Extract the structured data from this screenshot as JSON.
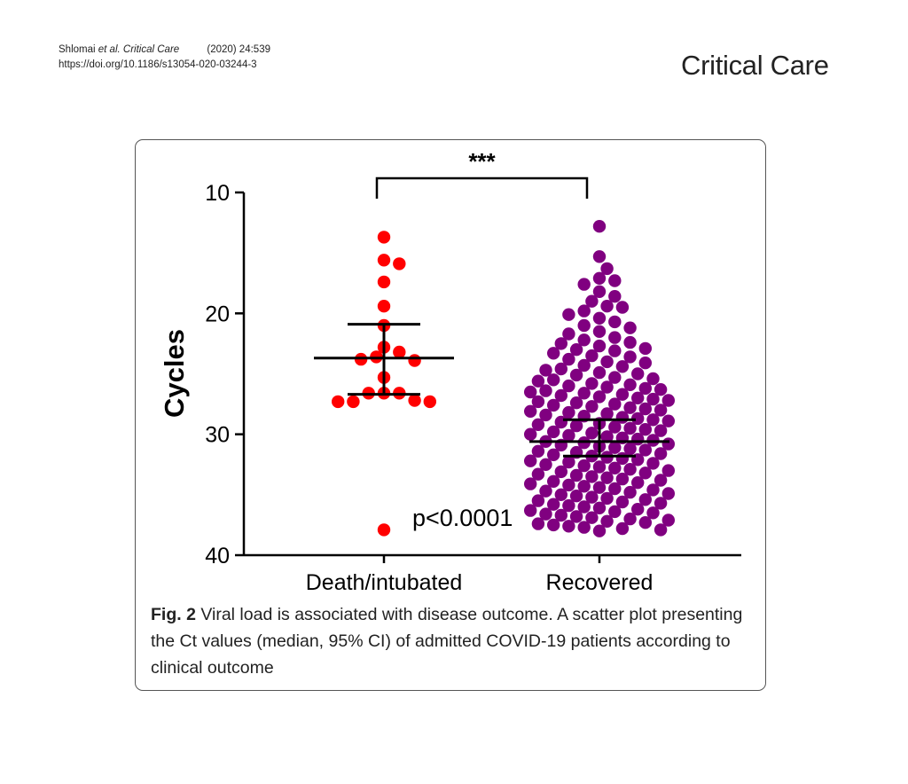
{
  "header": {
    "citation_authors": "Shlomai",
    "citation_etal": "et al.",
    "citation_journal": "Critical Care",
    "citation_year": "(2020) 24:539",
    "doi": "https://doi.org/10.1186/s13054-020-03244-3",
    "journal_name": "Critical Care"
  },
  "caption": {
    "label": "Fig. 2",
    "text": "Viral load is associated with disease outcome. A scatter plot presenting the Ct values (median, 95% CI) of admitted COVID-19 patients according to clinical outcome"
  },
  "chart_data": {
    "type": "scatter",
    "ylabel": "Cycles",
    "ylim": [
      10,
      40
    ],
    "y_inverted": true,
    "yticks": [
      "10",
      "20",
      "30",
      "40"
    ],
    "categories": [
      "Death/intubated",
      "Recovered"
    ],
    "significance": "***",
    "annotation": "p<0.0001",
    "colors": {
      "death": "#ff0000",
      "recovered": "#800080",
      "bars": "#000000"
    },
    "series": [
      {
        "category": "Death/intubated",
        "median": 23.7,
        "ci": [
          20.9,
          26.7
        ],
        "points": [
          13.7,
          15.9,
          15.6,
          17.4,
          19.4,
          21.0,
          22.8,
          23.2,
          23.8,
          23.6,
          23.9,
          25.3,
          26.6,
          26.6,
          26.6,
          27.3,
          27.2,
          27.3,
          27.3,
          37.9
        ]
      },
      {
        "category": "Recovered",
        "median": 30.6,
        "ci": [
          28.8,
          31.8
        ],
        "points": [
          12.8,
          15.3,
          16.3,
          17.1,
          17.3,
          17.6,
          18.2,
          18.6,
          19.0,
          19.4,
          19.5,
          19.8,
          20.1,
          20.4,
          20.7,
          21.0,
          21.2,
          21.5,
          21.7,
          22.0,
          22.2,
          22.4,
          22.5,
          22.7,
          22.9,
          23.0,
          23.1,
          23.3,
          23.5,
          23.6,
          23.8,
          24.0,
          24.1,
          24.3,
          24.4,
          24.6,
          24.7,
          24.9,
          25.0,
          25.1,
          25.3,
          25.4,
          25.5,
          25.6,
          25.8,
          25.9,
          26.0,
          26.1,
          26.2,
          26.3,
          26.4,
          26.5,
          26.6,
          26.7,
          26.8,
          26.9,
          27.0,
          27.1,
          27.2,
          27.3,
          27.4,
          27.5,
          27.6,
          27.7,
          27.8,
          27.9,
          28.0,
          28.1,
          28.2,
          28.3,
          28.4,
          28.5,
          28.6,
          28.7,
          28.8,
          28.9,
          29.0,
          29.1,
          29.2,
          29.3,
          29.4,
          29.5,
          29.6,
          29.7,
          29.8,
          29.9,
          30.0,
          30.1,
          30.2,
          30.3,
          30.4,
          30.5,
          30.6,
          30.7,
          30.8,
          30.9,
          31.0,
          31.1,
          31.2,
          31.3,
          31.4,
          31.5,
          31.6,
          31.7,
          31.8,
          31.9,
          32.0,
          32.1,
          32.2,
          32.3,
          32.4,
          32.5,
          32.6,
          32.7,
          32.8,
          32.9,
          33.0,
          33.1,
          33.2,
          33.3,
          33.4,
          33.5,
          33.6,
          33.7,
          33.8,
          33.9,
          34.0,
          34.1,
          34.2,
          34.3,
          34.4,
          34.5,
          34.6,
          34.7,
          34.8,
          34.9,
          35.0,
          35.1,
          35.2,
          35.3,
          35.4,
          35.5,
          35.6,
          35.7,
          35.8,
          35.9,
          36.0,
          36.1,
          36.2,
          36.3,
          36.4,
          36.5,
          36.6,
          36.7,
          36.8,
          36.9,
          37.0,
          37.1,
          37.2,
          37.3,
          37.4,
          37.5,
          37.6,
          37.7,
          37.8,
          37.9,
          38.0
        ]
      }
    ]
  }
}
